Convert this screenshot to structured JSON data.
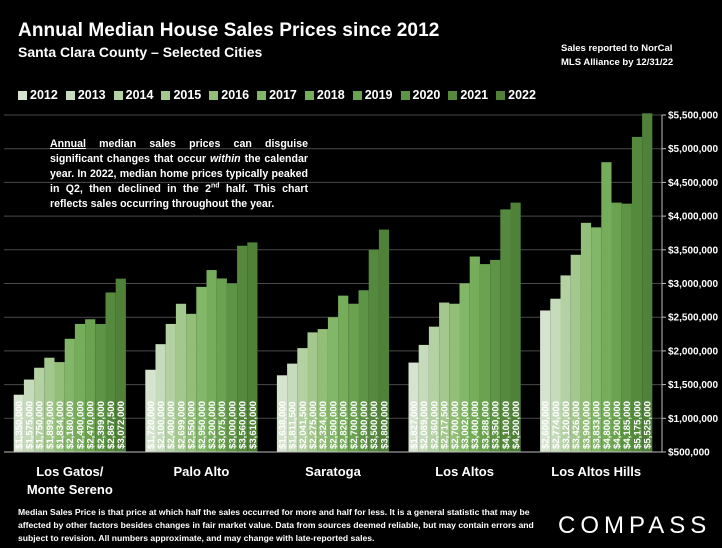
{
  "header": {
    "title": "Annual Median House Sales Prices since 2012",
    "subtitle": "Santa Clara County – Selected Cities",
    "source_line1": "Sales reported to NorCal",
    "source_line2": "MLS Alliance by 12/31/22"
  },
  "annotation": {
    "word_annual": "Annual",
    "part1": " median sales prices can disguise significant changes that occur ",
    "word_within": "within",
    "part2": " the calendar year. In 2022, median home prices typically peaked in Q2, then declined in the 2",
    "sup": "nd",
    "part3": " half. This chart reflects sales occurring throughout the year."
  },
  "footnote": "Median Sales Price is that price at which half the sales occurred for more and half for less. It is a general statistic that may be affected by other factors besides changes in fair market value. Data from sources deemed reliable, but may contain errors and subject to revision.  All numbers approximate, and may change with late-reported sales.",
  "logo": "COMPASS",
  "chart_data": {
    "type": "bar",
    "title": "Annual Median House Sales Prices since 2012",
    "subtitle": "Santa Clara County – Selected Cities",
    "years": [
      "2012",
      "2013",
      "2014",
      "2015",
      "2016",
      "2017",
      "2018",
      "2019",
      "2020",
      "2021",
      "2022"
    ],
    "colors": [
      "#d6e3cf",
      "#c6dbbc",
      "#b4d1a4",
      "#a3c78d",
      "#92be78",
      "#82b668",
      "#76ad5b",
      "#6aa250",
      "#5e9446",
      "#558a3e",
      "#4f8139"
    ],
    "ylim": [
      500000,
      5500000
    ],
    "yticks": [
      500000,
      1000000,
      1500000,
      2000000,
      2500000,
      3000000,
      3500000,
      4000000,
      4500000,
      5000000,
      5500000
    ],
    "ytick_labels": [
      "$500,000",
      "$1,000,000",
      "$1,500,000",
      "$2,000,000",
      "$2,500,000",
      "$3,000,000",
      "$3,500,000",
      "$4,000,000",
      "$4,500,000",
      "$5,000,000",
      "$5,500,000"
    ],
    "groups": [
      {
        "name": "Los Gatos/ Monte Sereno",
        "label_line1": "Los Gatos/",
        "label_line2": "Monte Sereno",
        "values": [
          1350000,
          1575000,
          1750000,
          1899000,
          1834000,
          2180000,
          2400000,
          2470000,
          2399000,
          2867500,
          3072000
        ],
        "labels": [
          "$1,350,000",
          "$1,575,000",
          "$1,750,000",
          "$1,899,000",
          "$1,834,000",
          "$2,180,000",
          "$2,400,000",
          "$2,470,000",
          "$2,399,000",
          "$2,867,500",
          "$3,072,000"
        ]
      },
      {
        "name": "Palo Alto",
        "label_line1": "Palo Alto",
        "label_line2": "",
        "values": [
          1720000,
          2100000,
          2400000,
          2699000,
          2550000,
          2950000,
          3200000,
          3075000,
          3000000,
          3560000,
          3610000
        ],
        "labels": [
          "$1,720,000",
          "$2,100,000",
          "$2,400,000",
          "$2,699,000",
          "$2,550,000",
          "$2,950,000",
          "$3,200,000",
          "$3,075,000",
          "$3,000,000",
          "$3,560,000",
          "$3,610,000"
        ]
      },
      {
        "name": "Saratoga",
        "label_line1": "Saratoga",
        "label_line2": "",
        "values": [
          1638000,
          1811500,
          2041500,
          2275000,
          2324000,
          2500000,
          2820000,
          2700000,
          2900000,
          3500000,
          3800000
        ],
        "labels": [
          "$1,638,000",
          "$1,811,500",
          "$2,041,500",
          "$2,275,000",
          "$2,324,000",
          "$2,500,000",
          "$2,820,000",
          "$2,700,000",
          "$2,900,000",
          "$3,500,000",
          "$3,800,000"
        ]
      },
      {
        "name": "Los Altos",
        "label_line1": "Los Altos",
        "label_line2": "",
        "values": [
          1827000,
          2089000,
          2360000,
          2717500,
          2700000,
          3002000,
          3400000,
          3288000,
          3350000,
          4100000,
          4200000
        ],
        "labels": [
          "$1,827,000",
          "$2,089,000",
          "$2,360,000",
          "$2,717,500",
          "$2,700,000",
          "$3,002,000",
          "$3,400,000",
          "$3,288,000",
          "$3,350,000",
          "$4,100,000",
          "$4,200,000"
        ]
      },
      {
        "name": "Los Altos Hills",
        "label_line1": "Los Altos Hills",
        "label_line2": "",
        "values": [
          2600000,
          2774000,
          3120000,
          3426000,
          3900000,
          3833000,
          4800000,
          4200000,
          4185000,
          5175000,
          5525000
        ],
        "labels": [
          "$2,600,000",
          "$2,774,000",
          "$3,120,000",
          "$3,426,000",
          "$3,900,000",
          "$3,833,000",
          "$4,800,000",
          "$4,200,000",
          "$4,185,000",
          "$5,175,000",
          "$5,525,000"
        ]
      }
    ],
    "grid": true,
    "legend": "top"
  }
}
